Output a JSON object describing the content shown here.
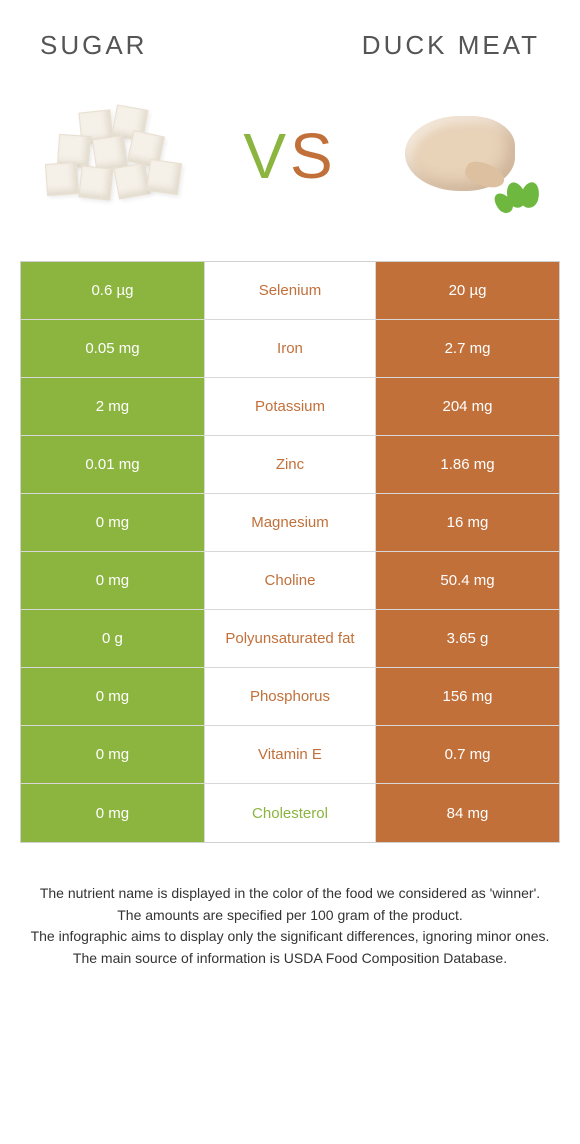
{
  "header": {
    "left_title": "SUGAR",
    "right_title": "DUCK MEAT"
  },
  "vs": {
    "v": "V",
    "s": "S"
  },
  "colors": {
    "sugar": "#8bb53f",
    "duck": "#c1703a",
    "border": "#d0d0d0",
    "text": "#333333"
  },
  "rows": [
    {
      "left": "0.6 µg",
      "label": "Selenium",
      "right": "20 µg",
      "winner": "duck"
    },
    {
      "left": "0.05 mg",
      "label": "Iron",
      "right": "2.7 mg",
      "winner": "duck"
    },
    {
      "left": "2 mg",
      "label": "Potassium",
      "right": "204 mg",
      "winner": "duck"
    },
    {
      "left": "0.01 mg",
      "label": "Zinc",
      "right": "1.86 mg",
      "winner": "duck"
    },
    {
      "left": "0 mg",
      "label": "Magnesium",
      "right": "16 mg",
      "winner": "duck"
    },
    {
      "left": "0 mg",
      "label": "Choline",
      "right": "50.4 mg",
      "winner": "duck"
    },
    {
      "left": "0 g",
      "label": "Polyunsaturated fat",
      "right": "3.65 g",
      "winner": "duck"
    },
    {
      "left": "0 mg",
      "label": "Phosphorus",
      "right": "156 mg",
      "winner": "duck"
    },
    {
      "left": "0 mg",
      "label": "Vitamin E",
      "right": "0.7 mg",
      "winner": "duck"
    },
    {
      "left": "0 mg",
      "label": "Cholesterol",
      "right": "84 mg",
      "winner": "sugar"
    }
  ],
  "footnotes": [
    "The nutrient name is displayed in the color of the food we considered as 'winner'.",
    "The amounts are specified per 100 gram of the product.",
    "The infographic aims to display only the significant differences, ignoring minor ones.",
    "The main source of information is USDA Food Composition Database."
  ]
}
